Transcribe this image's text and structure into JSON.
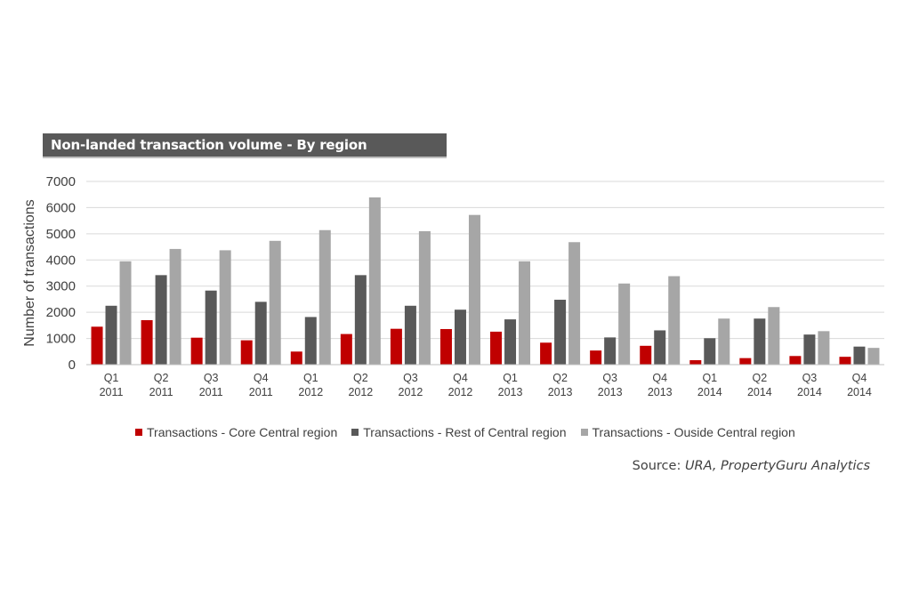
{
  "title": "Non-landed transaction volume  - By region",
  "source": {
    "label": "Source: ",
    "text": "URA, PropertyGuru Analytics"
  },
  "colors": {
    "core": "#c00000",
    "rest": "#595959",
    "outside": "#a6a6a6",
    "title_bg": "#595959",
    "grid": "#d9d9d9"
  },
  "chart_data": {
    "type": "bar",
    "ylabel": "Number of transactions",
    "ylim": [
      0,
      7000
    ],
    "yticks": [
      0,
      1000,
      2000,
      3000,
      4000,
      5000,
      6000,
      7000
    ],
    "grid": true,
    "legend_position": "bottom",
    "categories": [
      [
        "Q1",
        "2011"
      ],
      [
        "Q2",
        "2011"
      ],
      [
        "Q3",
        "2011"
      ],
      [
        "Q4",
        "2011"
      ],
      [
        "Q1",
        "2012"
      ],
      [
        "Q2",
        "2012"
      ],
      [
        "Q3",
        "2012"
      ],
      [
        "Q4",
        "2012"
      ],
      [
        "Q1",
        "2013"
      ],
      [
        "Q2",
        "2013"
      ],
      [
        "Q3",
        "2013"
      ],
      [
        "Q4",
        "2013"
      ],
      [
        "Q1",
        "2014"
      ],
      [
        "Q2",
        "2014"
      ],
      [
        "Q3",
        "2014"
      ],
      [
        "Q4",
        "2014"
      ]
    ],
    "series": [
      {
        "name": "Transactions - Core Central region",
        "color": "#c00000",
        "values": [
          1450,
          1700,
          1030,
          930,
          500,
          1170,
          1370,
          1360,
          1260,
          840,
          540,
          720,
          170,
          250,
          330,
          300
        ]
      },
      {
        "name": "Transactions - Rest of Central region",
        "color": "#595959",
        "values": [
          2250,
          3420,
          2830,
          2400,
          1820,
          3420,
          2250,
          2100,
          1730,
          2480,
          1040,
          1310,
          1010,
          1760,
          1150,
          690
        ]
      },
      {
        "name": "Transactions - Ouside Central region",
        "color": "#a6a6a6",
        "values": [
          3950,
          4420,
          4370,
          4730,
          5140,
          6390,
          5100,
          5720,
          3950,
          4680,
          3100,
          3380,
          1760,
          2200,
          1280,
          640
        ]
      }
    ]
  }
}
